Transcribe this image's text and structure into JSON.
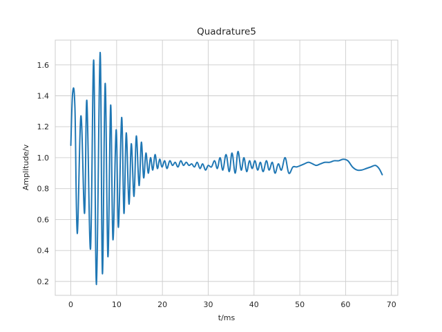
{
  "chart_data": {
    "type": "line",
    "title": "Quadrature5",
    "xlabel": "t/ms",
    "ylabel": "Amplitude/v",
    "xlim": [
      -3.4,
      71.4
    ],
    "ylim": [
      0.11,
      1.76
    ],
    "grid": true,
    "x_ticks": [
      0,
      10,
      20,
      30,
      40,
      50,
      60,
      70
    ],
    "y_ticks": [
      0.2,
      0.4,
      0.6,
      0.8,
      1.0,
      1.2,
      1.4,
      1.6
    ],
    "x_tick_labels": [
      "0",
      "10",
      "20",
      "30",
      "40",
      "50",
      "60",
      "70"
    ],
    "y_tick_labels": [
      "0.2",
      "0.4",
      "0.6",
      "0.8",
      "1.0",
      "1.2",
      "1.4",
      "1.6"
    ],
    "series": [
      {
        "color": "#1f77b4",
        "x": [
          0,
          0.4,
          0.9,
          1.4,
          2.2,
          3.0,
          3.5,
          4.3,
          5.0,
          5.6,
          6.4,
          6.9,
          7.5,
          8.1,
          8.7,
          9.2,
          9.9,
          10.4,
          11.1,
          11.6,
          12.1,
          12.7,
          13.2,
          13.8,
          14.3,
          14.9,
          15.4,
          15.9,
          16.4,
          16.9,
          17.4,
          17.9,
          18.4,
          18.9,
          19.4,
          19.9,
          20.5,
          21.0,
          21.6,
          22.2,
          22.8,
          23.4,
          24.0,
          24.6,
          25.2,
          25.8,
          26.4,
          27.0,
          27.6,
          28.2,
          28.8,
          29.4,
          30.0,
          30.7,
          31.4,
          32.0,
          32.6,
          33.2,
          33.9,
          34.6,
          35.2,
          35.9,
          36.5,
          37.2,
          37.8,
          38.4,
          39.0,
          39.6,
          40.2,
          40.8,
          41.4,
          42.0,
          42.7,
          43.3,
          44.0,
          44.6,
          45.3,
          46.0,
          46.8,
          47.6,
          48.5,
          49.3,
          50.2,
          51.0,
          51.9,
          52.8,
          53.6,
          54.5,
          55.5,
          56.5,
          57.5,
          58.5,
          59.5,
          60.5,
          61.5,
          62.5,
          63.5,
          64.5,
          65.5,
          66.5,
          67.3,
          68.0
        ],
        "y": [
          1.08,
          1.42,
          1.32,
          0.51,
          1.27,
          0.64,
          1.37,
          0.41,
          1.63,
          0.18,
          1.68,
          0.25,
          1.48,
          0.36,
          1.34,
          0.47,
          1.18,
          0.55,
          1.26,
          0.64,
          1.16,
          0.7,
          1.09,
          0.75,
          1.14,
          0.82,
          1.1,
          0.87,
          1.03,
          0.9,
          1.0,
          0.92,
          1.02,
          0.93,
          0.99,
          0.94,
          0.98,
          0.93,
          0.98,
          0.95,
          0.97,
          0.94,
          0.98,
          0.95,
          0.97,
          0.95,
          0.96,
          0.94,
          0.97,
          0.93,
          0.96,
          0.92,
          0.95,
          0.94,
          0.98,
          0.93,
          1.0,
          0.92,
          1.02,
          0.91,
          1.03,
          0.9,
          1.04,
          0.92,
          1.0,
          0.91,
          0.98,
          0.93,
          0.98,
          0.92,
          0.97,
          0.91,
          0.98,
          0.92,
          0.97,
          0.9,
          0.96,
          0.92,
          1.0,
          0.9,
          0.94,
          0.94,
          0.95,
          0.96,
          0.97,
          0.96,
          0.95,
          0.96,
          0.97,
          0.97,
          0.98,
          0.98,
          0.99,
          0.98,
          0.94,
          0.92,
          0.92,
          0.93,
          0.94,
          0.95,
          0.93,
          0.89
        ]
      }
    ]
  }
}
